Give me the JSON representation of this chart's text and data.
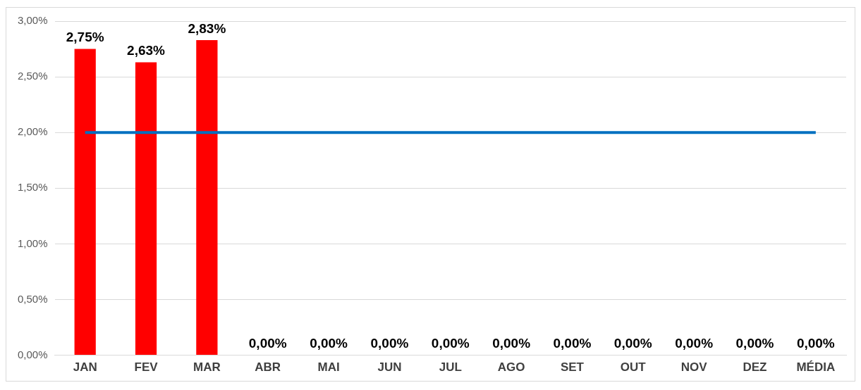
{
  "chart_data": {
    "type": "bar",
    "categories": [
      "JAN",
      "FEV",
      "MAR",
      "ABR",
      "MAI",
      "JUN",
      "JUL",
      "AGO",
      "SET",
      "OUT",
      "NOV",
      "DEZ",
      "MÉDIA"
    ],
    "series": [
      {
        "color": "#ff0000",
        "values": [
          2.75,
          2.63,
          2.83,
          0,
          0,
          0,
          0,
          0,
          0,
          0,
          0,
          0,
          0
        ],
        "value_labels": [
          "2,75%",
          "2,63%",
          "2,83%",
          "0,00%",
          "0,00%",
          "0,00%",
          "0,00%",
          "0,00%",
          "0,00%",
          "0,00%",
          "0,00%",
          "0,00%",
          "0,00%"
        ]
      },
      {
        "type": "line",
        "color": "#0070c0",
        "values": [
          2,
          2,
          2,
          2,
          2,
          2,
          2,
          2,
          2,
          2,
          2,
          2,
          2
        ]
      }
    ],
    "ylim": [
      0,
      3
    ],
    "yticks": [
      {
        "value": 0,
        "label": "0,00%"
      },
      {
        "value": 0.5,
        "label": "0,50%"
      },
      {
        "value": 1,
        "label": "1,00%"
      },
      {
        "value": 1.5,
        "label": "1,50%"
      },
      {
        "value": 2,
        "label": "2,00%"
      },
      {
        "value": 2.5,
        "label": "2,50%"
      },
      {
        "value": 3,
        "label": "3,00%"
      }
    ],
    "grid": "y",
    "legend": false,
    "marker": "none",
    "line_style": "solid"
  }
}
